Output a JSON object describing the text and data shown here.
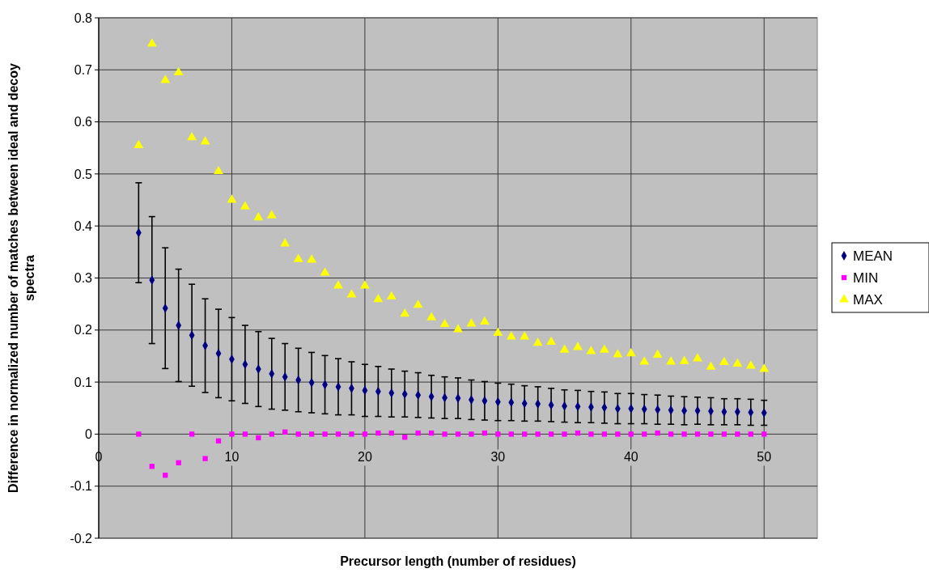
{
  "chart_data": {
    "type": "scatter",
    "xlabel": "Precursor length (number of residues)",
    "ylabel": "Difference in normalized number of matches between ideal and decoy spectra",
    "x": [
      3,
      4,
      5,
      6,
      7,
      8,
      9,
      10,
      11,
      12,
      13,
      14,
      15,
      16,
      17,
      18,
      19,
      20,
      21,
      22,
      23,
      24,
      25,
      26,
      27,
      28,
      29,
      30,
      31,
      32,
      33,
      34,
      35,
      36,
      37,
      38,
      39,
      40,
      41,
      42,
      43,
      44,
      45,
      46,
      47,
      48,
      49,
      50
    ],
    "series": [
      {
        "name": "MEAN",
        "color": "#000080",
        "marker": "diamond",
        "values": [
          0.387,
          0.296,
          0.242,
          0.209,
          0.19,
          0.17,
          0.155,
          0.144,
          0.134,
          0.125,
          0.116,
          0.11,
          0.104,
          0.099,
          0.095,
          0.091,
          0.088,
          0.084,
          0.082,
          0.079,
          0.077,
          0.075,
          0.072,
          0.07,
          0.069,
          0.066,
          0.064,
          0.062,
          0.061,
          0.059,
          0.058,
          0.056,
          0.054,
          0.053,
          0.052,
          0.051,
          0.049,
          0.049,
          0.048,
          0.047,
          0.046,
          0.045,
          0.045,
          0.044,
          0.043,
          0.043,
          0.042,
          0.041
        ],
        "errors": [
          0.096,
          0.122,
          0.116,
          0.108,
          0.098,
          0.09,
          0.085,
          0.08,
          0.075,
          0.072,
          0.068,
          0.064,
          0.061,
          0.058,
          0.056,
          0.054,
          0.051,
          0.05,
          0.048,
          0.046,
          0.044,
          0.043,
          0.041,
          0.04,
          0.039,
          0.038,
          0.037,
          0.036,
          0.035,
          0.034,
          0.033,
          0.032,
          0.031,
          0.031,
          0.03,
          0.03,
          0.029,
          0.029,
          0.028,
          0.028,
          0.027,
          0.027,
          0.026,
          0.026,
          0.025,
          0.025,
          0.025,
          0.024
        ]
      },
      {
        "name": "MIN",
        "color": "#ff00ff",
        "marker": "square",
        "values": [
          0,
          -0.062,
          -0.079,
          -0.055,
          0,
          -0.047,
          -0.013,
          0,
          0,
          -0.007,
          0,
          0.004,
          0,
          0,
          0,
          0,
          0,
          0,
          0.002,
          0.002,
          -0.006,
          0.002,
          0.002,
          0,
          0,
          0,
          0.002,
          0,
          0,
          0,
          0,
          0,
          0,
          0.002,
          0,
          0,
          0,
          0,
          0,
          0.002,
          0,
          0,
          0,
          0,
          0,
          0,
          0,
          0
        ]
      },
      {
        "name": "MAX",
        "color": "#ffff00",
        "marker": "triangle",
        "values": [
          0.555,
          0.75,
          0.68,
          0.695,
          0.57,
          0.562,
          0.505,
          0.45,
          0.437,
          0.416,
          0.42,
          0.366,
          0.336,
          0.335,
          0.31,
          0.285,
          0.268,
          0.285,
          0.259,
          0.264,
          0.231,
          0.248,
          0.224,
          0.211,
          0.201,
          0.212,
          0.216,
          0.194,
          0.187,
          0.187,
          0.175,
          0.177,
          0.162,
          0.167,
          0.159,
          0.162,
          0.153,
          0.155,
          0.139,
          0.152,
          0.139,
          0.14,
          0.145,
          0.129,
          0.138,
          0.135,
          0.131,
          0.125
        ]
      }
    ],
    "xlim": [
      0,
      54
    ],
    "xticks": [
      0,
      10,
      20,
      30,
      40,
      50
    ],
    "ylim": [
      -0.2,
      0.8
    ],
    "yticks": [
      -0.2,
      -0.1,
      0,
      0.1,
      0.2,
      0.3,
      0.4,
      0.5,
      0.6,
      0.7,
      0.8
    ],
    "grid": true,
    "legend": "right"
  }
}
